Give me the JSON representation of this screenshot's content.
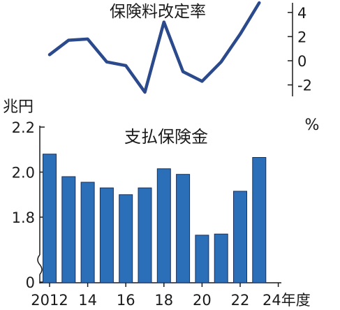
{
  "chart_data": [
    {
      "type": "line",
      "title": "保険料改定率",
      "unit": "%",
      "x": [
        2012,
        2013,
        2014,
        2015,
        2016,
        2017,
        2018,
        2019,
        2020,
        2021,
        2022,
        2023,
        2024
      ],
      "values": [
        0.5,
        1.7,
        1.8,
        -0.1,
        -0.4,
        -2.6,
        3.2,
        -0.9,
        -1.7,
        -0.1,
        2.2,
        4.8,
        null
      ],
      "y_ticks": [
        "4",
        "2",
        "0",
        "-2"
      ],
      "ylim": [
        -3,
        5
      ],
      "color": "#2b4a8b",
      "y_axis_side": "right",
      "grid": false
    },
    {
      "type": "bar",
      "title": "支払保険金",
      "unit": "兆円",
      "x": [
        2012,
        2013,
        2014,
        2015,
        2016,
        2017,
        2018,
        2019,
        2020,
        2021,
        2022,
        2023
      ],
      "values": [
        2.08,
        1.98,
        1.955,
        1.93,
        1.9,
        1.93,
        2.015,
        1.99,
        1.72,
        1.725,
        1.915,
        2.065
      ],
      "y_ticks": [
        "2.2",
        "2.0",
        "1.8",
        "0"
      ],
      "ylim": [
        1.6,
        2.2
      ],
      "axis_break": true,
      "x_tick_labels": [
        "2012",
        "14",
        "16",
        "18",
        "20",
        "22",
        "24年度"
      ],
      "color": "#2a6fb8",
      "edge_color": "#1b2f5a",
      "grid": false
    }
  ]
}
